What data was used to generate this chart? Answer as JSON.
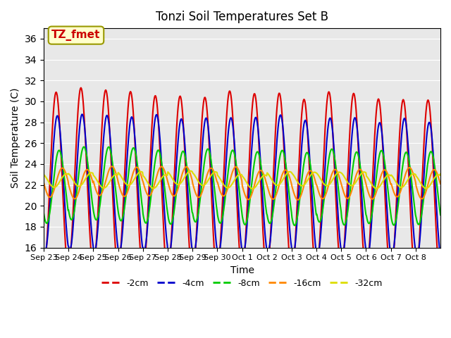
{
  "title": "Tonzi Soil Temperatures Set B",
  "xlabel": "Time",
  "ylabel": "Soil Temperature (C)",
  "ylim": [
    16,
    37
  ],
  "yticks": [
    16,
    18,
    20,
    22,
    24,
    26,
    28,
    30,
    32,
    34,
    36
  ],
  "x_labels": [
    "Sep 23",
    "Sep 24",
    "Sep 25",
    "Sep 26",
    "Sep 27",
    "Sep 28",
    "Sep 29",
    "Sep 30",
    "Oct 1",
    "Oct 2",
    "Oct 3",
    "Oct 4",
    "Oct 5",
    "Oct 6",
    "Oct 7",
    "Oct 8"
  ],
  "legend_labels": [
    "-2cm",
    "-4cm",
    "-8cm",
    "-16cm",
    "-32cm"
  ],
  "legend_colors": [
    "#dd0000",
    "#0000cc",
    "#00cc00",
    "#ff8800",
    "#dddd00"
  ],
  "line_widths": [
    1.5,
    1.5,
    1.5,
    1.5,
    1.5
  ],
  "annotation_text": "TZ_fmet",
  "annotation_bg": "#ffffcc",
  "annotation_border": "#999900",
  "background_color": "#e8e8e8",
  "n_days": 16,
  "points_per_day": 48,
  "amplitudes": [
    8.5,
    6.5,
    3.5,
    1.4,
    0.65
  ],
  "phase_lags": [
    0.0,
    0.05,
    0.12,
    0.25,
    0.42
  ],
  "base_temps": [
    22.5,
    22.3,
    22.0,
    22.2,
    22.5
  ],
  "trend_rates": [
    -0.04,
    -0.035,
    -0.02,
    -0.005,
    -0.002
  ]
}
